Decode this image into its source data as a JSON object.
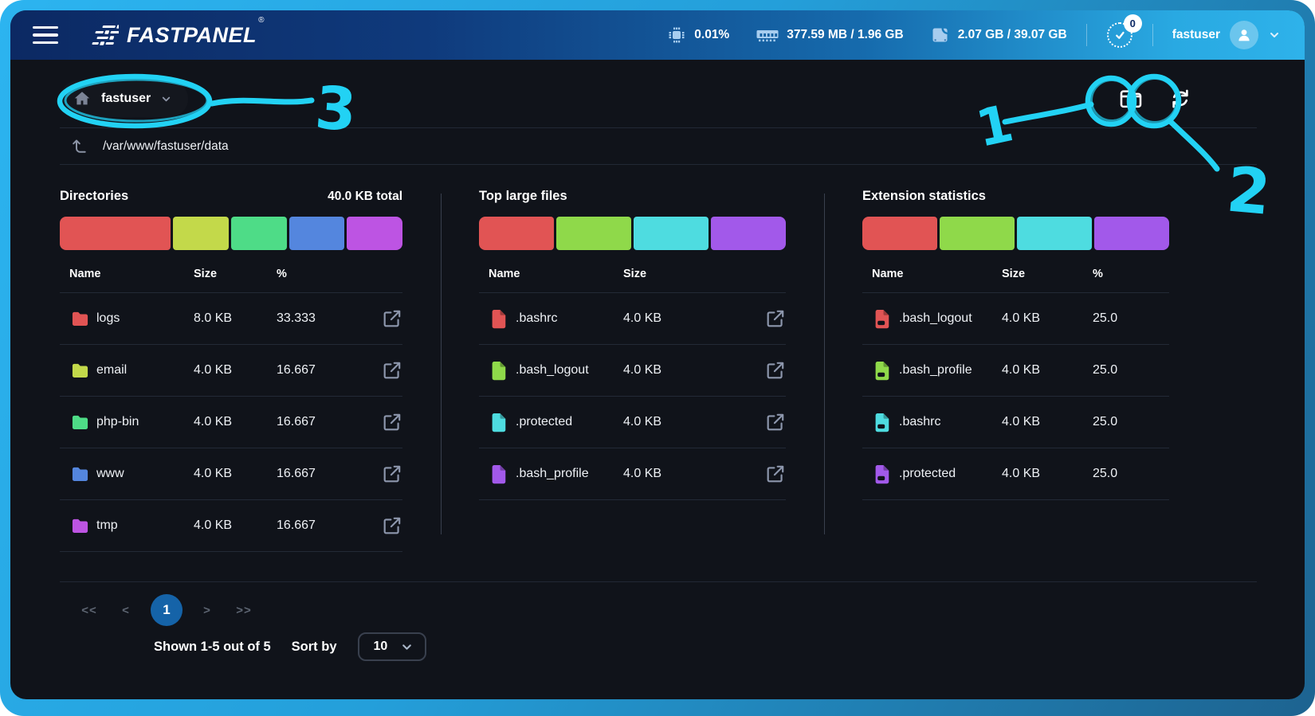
{
  "header": {
    "logo_text": "FASTPANEL",
    "logo_reg": "®",
    "stats": [
      {
        "icon": "cpu-icon",
        "value": "0.01%"
      },
      {
        "icon": "ram-icon",
        "value": "377.59 MB / 1.96 GB"
      },
      {
        "icon": "disk-icon",
        "value": "2.07 GB / 39.07 GB"
      }
    ],
    "notifications_count": "0",
    "username": "fastuser"
  },
  "toolbar": {
    "location_label": "fastuser",
    "path": "/var/www/fastuser/data"
  },
  "panels": [
    {
      "title": "Directories",
      "total": "40.0 KB total",
      "columns": [
        "Name",
        "Size",
        "%"
      ],
      "icon": "folder",
      "link": true,
      "bar": [
        {
          "color": "#e15454",
          "pct": 33.333
        },
        {
          "color": "#c3d94a",
          "pct": 16.667
        },
        {
          "color": "#4edc87",
          "pct": 16.667
        },
        {
          "color": "#5486de",
          "pct": 16.667
        },
        {
          "color": "#bd54e3",
          "pct": 16.667
        }
      ],
      "rows": [
        {
          "name": "logs",
          "size": "8.0 KB",
          "pct": "33.333",
          "color": "#e15454"
        },
        {
          "name": "email",
          "size": "4.0 KB",
          "pct": "16.667",
          "color": "#c3d94a"
        },
        {
          "name": "php-bin",
          "size": "4.0 KB",
          "pct": "16.667",
          "color": "#4edc87"
        },
        {
          "name": "www",
          "size": "4.0 KB",
          "pct": "16.667",
          "color": "#5486de"
        },
        {
          "name": "tmp",
          "size": "4.0 KB",
          "pct": "16.667",
          "color": "#bd54e3"
        }
      ]
    },
    {
      "title": "Top large files",
      "total": "",
      "columns": [
        "Name",
        "Size"
      ],
      "icon": "file",
      "link": true,
      "bar": [
        {
          "color": "#e15454",
          "pct": 25
        },
        {
          "color": "#8fd94a",
          "pct": 25
        },
        {
          "color": "#4edce0",
          "pct": 25
        },
        {
          "color": "#a259ea",
          "pct": 25
        }
      ],
      "rows": [
        {
          "name": ".bashrc",
          "size": "4.0 KB",
          "color": "#e15454"
        },
        {
          "name": ".bash_logout",
          "size": "4.0 KB",
          "color": "#8fd94a"
        },
        {
          "name": ".protected",
          "size": "4.0 KB",
          "color": "#4edce0"
        },
        {
          "name": ".bash_profile",
          "size": "4.0 KB",
          "color": "#a259ea"
        }
      ]
    },
    {
      "title": "Extension statistics",
      "total": "",
      "columns": [
        "Name",
        "Size",
        "%"
      ],
      "icon": "file-ext",
      "link": false,
      "bar": [
        {
          "color": "#e15454",
          "pct": 25
        },
        {
          "color": "#8fd94a",
          "pct": 25
        },
        {
          "color": "#4edce0",
          "pct": 25
        },
        {
          "color": "#a259ea",
          "pct": 25
        }
      ],
      "rows": [
        {
          "name": ".bash_logout",
          "size": "4.0 KB",
          "pct": "25.0",
          "color": "#e15454"
        },
        {
          "name": ".bash_profile",
          "size": "4.0 KB",
          "pct": "25.0",
          "color": "#8fd94a"
        },
        {
          "name": ".bashrc",
          "size": "4.0 KB",
          "pct": "25.0",
          "color": "#4edce0"
        },
        {
          "name": ".protected",
          "size": "4.0 KB",
          "pct": "25.0",
          "color": "#a259ea"
        }
      ]
    }
  ],
  "pagination": {
    "first": "<<",
    "prev": "<",
    "page": "1",
    "next": ">",
    "last": ">>",
    "shown": "Shown 1-5 out of 5",
    "sort_label": "Sort by",
    "sort_value": "10"
  },
  "annotations": {
    "color": "#22d2f4",
    "labels": [
      "1",
      "2",
      "3"
    ]
  }
}
